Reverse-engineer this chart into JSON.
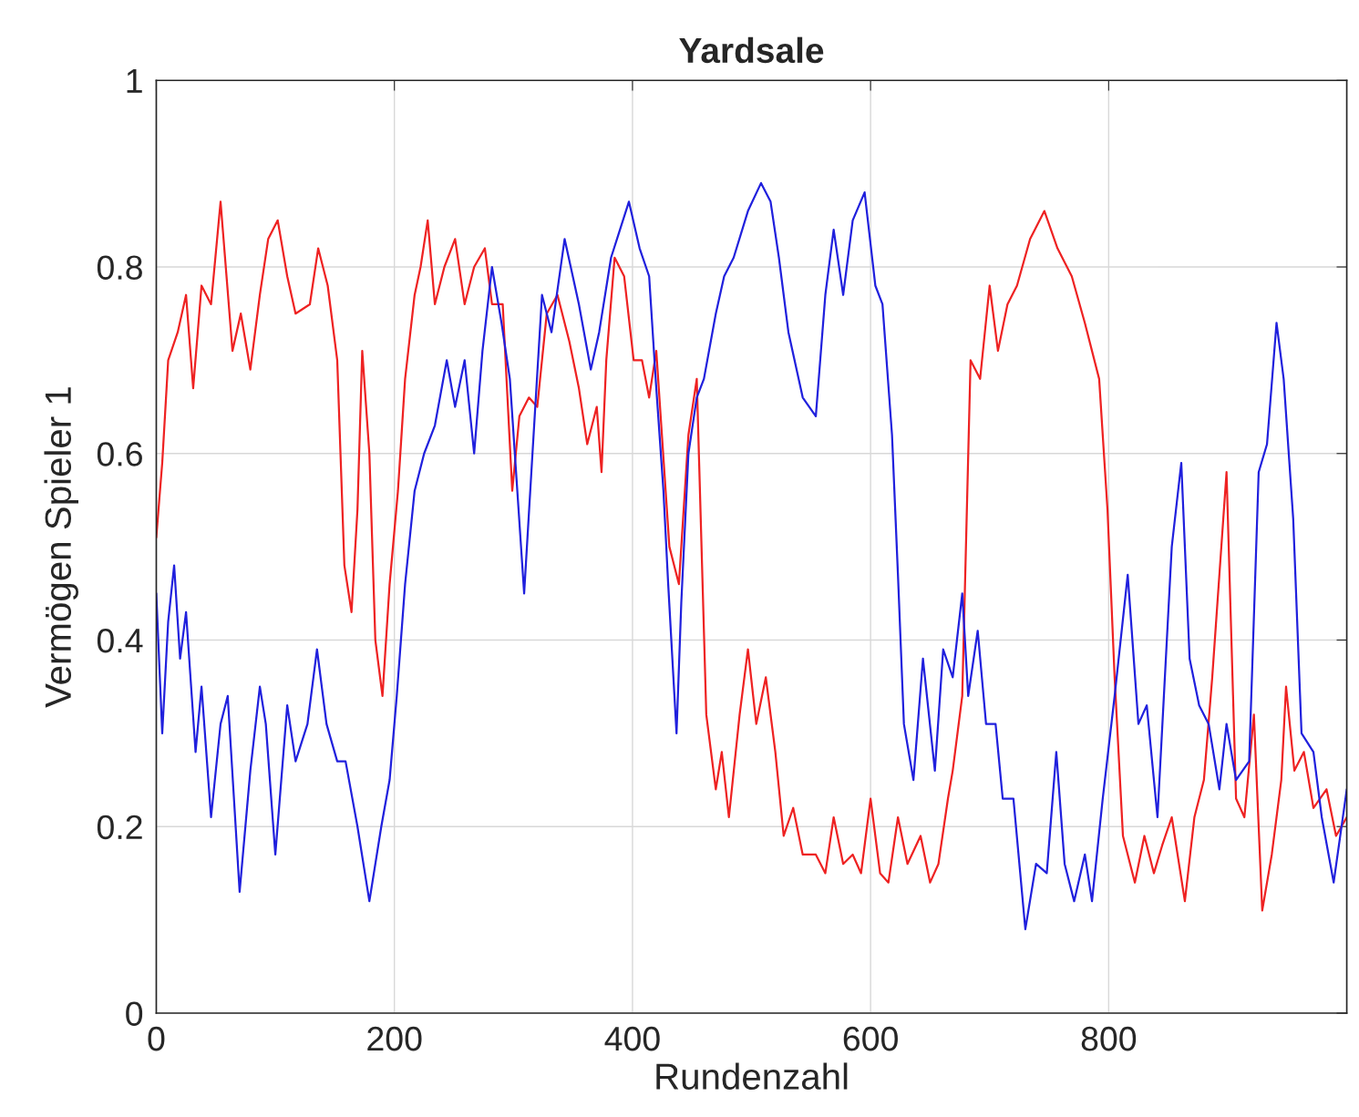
{
  "chart_data": {
    "type": "line",
    "title": "Yardsale",
    "xlabel": "Rundenzahl",
    "ylabel": "Vermögen Spieler 1",
    "xlim": [
      0,
      1000
    ],
    "xticks": [
      0,
      200,
      400,
      600,
      800
    ],
    "ylim": [
      0,
      1
    ],
    "yticks": [
      0,
      0.2,
      0.4,
      0.6,
      0.8,
      1
    ],
    "grid": true,
    "marker": "none",
    "line_style": "solid",
    "series": [
      {
        "color": "#ee2222",
        "x": [
          0,
          5,
          10,
          18,
          25,
          31,
          38,
          46,
          54,
          64,
          71,
          79,
          87,
          94,
          102,
          110,
          117,
          129,
          136,
          144,
          152,
          158,
          164,
          169,
          173,
          179,
          184,
          190,
          196,
          203,
          209,
          217,
          222,
          228,
          234,
          242,
          251,
          259,
          267,
          276,
          282,
          291,
          299,
          305,
          313,
          320,
          328,
          337,
          347,
          355,
          362,
          370,
          374,
          378,
          385,
          393,
          401,
          408,
          414,
          420,
          431,
          439,
          447,
          454,
          462,
          470,
          475,
          481,
          490,
          497,
          504,
          512,
          520,
          527,
          535,
          543,
          554,
          562,
          569,
          577,
          585,
          592,
          600,
          608,
          615,
          623,
          631,
          642,
          650,
          657,
          665,
          669,
          677,
          684,
          692,
          700,
          707,
          715,
          723,
          734,
          746,
          757,
          769,
          780,
          792,
          799,
          805,
          812,
          822,
          830,
          838,
          845,
          853,
          864,
          872,
          880,
          887,
          899,
          907,
          914,
          922,
          929,
          937,
          945,
          949,
          956,
          964,
          972,
          983,
          991,
          1000
        ],
        "values": [
          0.51,
          0.59,
          0.7,
          0.73,
          0.77,
          0.67,
          0.78,
          0.76,
          0.87,
          0.71,
          0.75,
          0.69,
          0.77,
          0.83,
          0.85,
          0.79,
          0.75,
          0.76,
          0.82,
          0.78,
          0.7,
          0.48,
          0.43,
          0.54,
          0.71,
          0.6,
          0.4,
          0.34,
          0.46,
          0.56,
          0.68,
          0.77,
          0.8,
          0.85,
          0.76,
          0.8,
          0.83,
          0.76,
          0.8,
          0.82,
          0.76,
          0.76,
          0.56,
          0.64,
          0.66,
          0.65,
          0.75,
          0.77,
          0.72,
          0.67,
          0.61,
          0.65,
          0.58,
          0.7,
          0.81,
          0.79,
          0.7,
          0.7,
          0.66,
          0.71,
          0.5,
          0.46,
          0.62,
          0.68,
          0.32,
          0.24,
          0.28,
          0.21,
          0.32,
          0.39,
          0.31,
          0.36,
          0.28,
          0.19,
          0.22,
          0.17,
          0.17,
          0.15,
          0.21,
          0.16,
          0.17,
          0.15,
          0.23,
          0.15,
          0.14,
          0.21,
          0.16,
          0.19,
          0.14,
          0.16,
          0.23,
          0.26,
          0.34,
          0.7,
          0.68,
          0.78,
          0.71,
          0.76,
          0.78,
          0.83,
          0.86,
          0.82,
          0.79,
          0.74,
          0.68,
          0.54,
          0.36,
          0.19,
          0.14,
          0.19,
          0.15,
          0.18,
          0.21,
          0.12,
          0.21,
          0.25,
          0.36,
          0.58,
          0.23,
          0.21,
          0.32,
          0.11,
          0.17,
          0.25,
          0.35,
          0.26,
          0.28,
          0.22,
          0.24,
          0.19,
          0.21
        ]
      },
      {
        "color": "#2020dd",
        "x": [
          0,
          5,
          10,
          15,
          20,
          25,
          33,
          38,
          46,
          54,
          60,
          70,
          79,
          87,
          92,
          100,
          110,
          117,
          127,
          135,
          143,
          152,
          159,
          169,
          179,
          189,
          196,
          202,
          209,
          217,
          225,
          234,
          244,
          251,
          259,
          267,
          274,
          282,
          290,
          297,
          309,
          316,
          324,
          332,
          343,
          355,
          365,
          372,
          382,
          397,
          406,
          414,
          420,
          426,
          430,
          437,
          441,
          447,
          454,
          460,
          470,
          477,
          485,
          497,
          508,
          516,
          523,
          531,
          543,
          554,
          562,
          569,
          577,
          585,
          595,
          604,
          610,
          618,
          623,
          628,
          636,
          644,
          654,
          661,
          669,
          677,
          682,
          690,
          697,
          705,
          711,
          720,
          730,
          739,
          748,
          756,
          763,
          771,
          780,
          786,
          795,
          805,
          816,
          825,
          832,
          841,
          853,
          861,
          868,
          876,
          884,
          893,
          899,
          907,
          918,
          926,
          933,
          941,
          947,
          955,
          962,
          972,
          979,
          989,
          1000
        ],
        "values": [
          0.45,
          0.3,
          0.42,
          0.48,
          0.38,
          0.43,
          0.28,
          0.35,
          0.21,
          0.31,
          0.34,
          0.13,
          0.26,
          0.35,
          0.31,
          0.17,
          0.33,
          0.27,
          0.31,
          0.39,
          0.31,
          0.27,
          0.27,
          0.2,
          0.12,
          0.2,
          0.25,
          0.34,
          0.46,
          0.56,
          0.6,
          0.63,
          0.7,
          0.65,
          0.7,
          0.6,
          0.71,
          0.8,
          0.74,
          0.68,
          0.45,
          0.6,
          0.77,
          0.73,
          0.83,
          0.76,
          0.69,
          0.73,
          0.81,
          0.87,
          0.82,
          0.79,
          0.67,
          0.56,
          0.46,
          0.3,
          0.44,
          0.6,
          0.66,
          0.68,
          0.75,
          0.79,
          0.81,
          0.86,
          0.89,
          0.87,
          0.81,
          0.73,
          0.66,
          0.64,
          0.77,
          0.84,
          0.77,
          0.85,
          0.88,
          0.78,
          0.76,
          0.62,
          0.47,
          0.31,
          0.25,
          0.38,
          0.26,
          0.39,
          0.36,
          0.45,
          0.34,
          0.41,
          0.31,
          0.31,
          0.23,
          0.23,
          0.09,
          0.16,
          0.15,
          0.28,
          0.16,
          0.12,
          0.17,
          0.12,
          0.23,
          0.34,
          0.47,
          0.31,
          0.33,
          0.21,
          0.5,
          0.59,
          0.38,
          0.33,
          0.31,
          0.24,
          0.31,
          0.25,
          0.27,
          0.58,
          0.61,
          0.74,
          0.68,
          0.53,
          0.3,
          0.28,
          0.21,
          0.14,
          0.24
        ]
      }
    ]
  }
}
